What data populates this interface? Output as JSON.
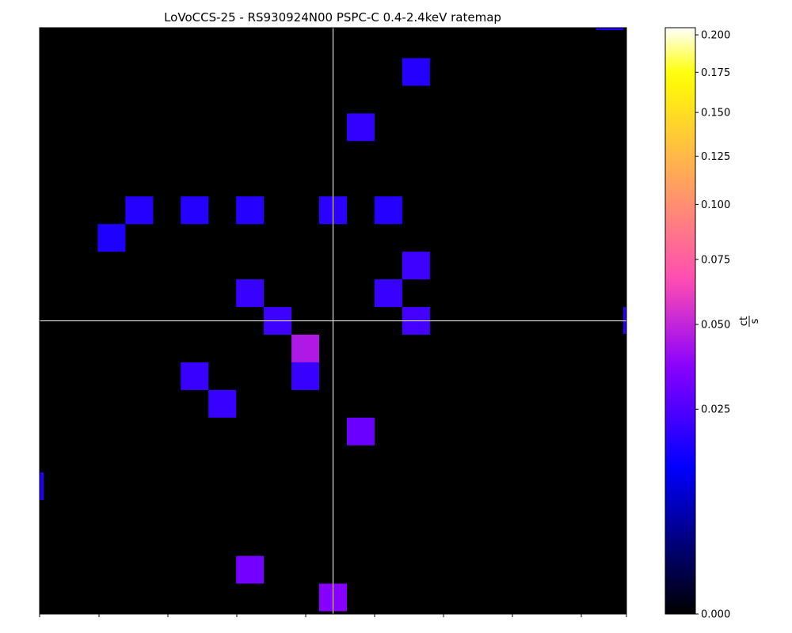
{
  "chart_data": {
    "type": "heatmap",
    "title": "LoVoCCS-25 - RS930924N00 PSPC-C 0.4-2.4keV ratemap",
    "colormap": "gnuplot2",
    "background_color": "#000000",
    "crosshair_color": "#ffffff",
    "colorbar": {
      "label": "ct/s",
      "label_numerator": "ct",
      "label_denominator": "s",
      "scale": "sqrt",
      "range": [
        0.0,
        0.205
      ],
      "ticks": [
        0.0,
        0.025,
        0.05,
        0.075,
        0.1,
        0.125,
        0.15,
        0.175,
        0.2
      ],
      "tick_labels": [
        "0.000",
        "0.025",
        "0.050",
        "0.075",
        "0.100",
        "0.125",
        "0.150",
        "0.175",
        "0.200"
      ]
    },
    "grid": {
      "x_range": [
        -10.6,
        10.6
      ],
      "y_range": [
        -10.6,
        10.6
      ],
      "crosshair": [
        0,
        0
      ]
    },
    "cells": [
      {
        "x": 3,
        "y": 9,
        "value": 0.018
      },
      {
        "x": 1,
        "y": 7,
        "value": 0.02
      },
      {
        "x": -7,
        "y": 4,
        "value": 0.018
      },
      {
        "x": -5,
        "y": 4,
        "value": 0.018
      },
      {
        "x": -3,
        "y": 4,
        "value": 0.018
      },
      {
        "x": 0,
        "y": 4,
        "value": 0.019
      },
      {
        "x": 2,
        "y": 4,
        "value": 0.018
      },
      {
        "x": -8,
        "y": 3,
        "value": 0.017
      },
      {
        "x": 3,
        "y": 2,
        "value": 0.022
      },
      {
        "x": -3,
        "y": 1,
        "value": 0.021
      },
      {
        "x": 2,
        "y": 1,
        "value": 0.021
      },
      {
        "x": -2,
        "y": 0,
        "value": 0.022
      },
      {
        "x": 3,
        "y": 0,
        "value": 0.023
      },
      {
        "x": -1,
        "y": -1,
        "value": 0.045
      },
      {
        "x": -5,
        "y": -2,
        "value": 0.021
      },
      {
        "x": -1,
        "y": -2,
        "value": 0.021
      },
      {
        "x": -4,
        "y": -3,
        "value": 0.021
      },
      {
        "x": 1,
        "y": -4,
        "value": 0.03
      },
      {
        "x": -3,
        "y": -9,
        "value": 0.032
      },
      {
        "x": 0,
        "y": -10,
        "value": 0.036
      }
    ],
    "edge_slivers": [
      {
        "edge": "top-right",
        "value": 0.017
      },
      {
        "edge": "right",
        "value": 0.019
      },
      {
        "edge": "left",
        "value": 0.017
      },
      {
        "edge": "left",
        "value": 0.017
      }
    ]
  }
}
